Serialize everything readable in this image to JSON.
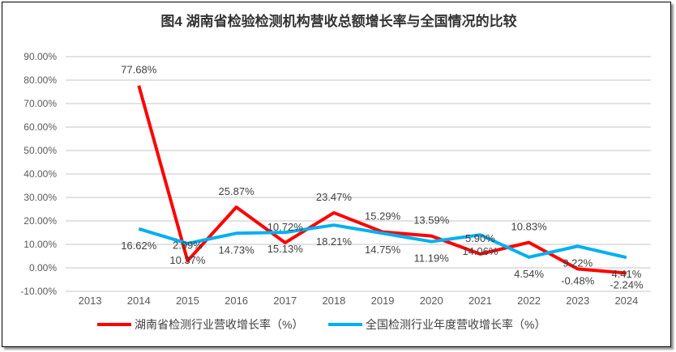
{
  "chart_data": {
    "type": "line",
    "title": "图4  湖南省检验检测机构营收总额增长率与全国情况的比较",
    "categories": [
      "2013",
      "2014",
      "2015",
      "2016",
      "2017",
      "2018",
      "2019",
      "2020",
      "2021",
      "2022",
      "2023",
      "2024"
    ],
    "ylim": [
      -10,
      90
    ],
    "yticks": [
      "-10.00%",
      "0.00%",
      "10.00%",
      "20.00%",
      "30.00%",
      "40.00%",
      "50.00%",
      "60.00%",
      "70.00%",
      "80.00%",
      "90.00%"
    ],
    "grid": true,
    "legend_position": "bottom",
    "series": [
      {
        "name": "湖南省检测行业营收增长率（%）",
        "color": "#ff0000",
        "values": [
          null,
          77.68,
          2.99,
          25.87,
          10.72,
          23.47,
          15.29,
          13.59,
          5.9,
          10.83,
          -0.48,
          -2.24
        ],
        "labels": [
          "",
          "77.68%",
          "2.99%",
          "25.87%",
          "10.72%",
          "23.47%",
          "15.29%",
          "13.59%",
          "5.90%",
          "10.83%",
          "-0.48%",
          "-2.24%"
        ]
      },
      {
        "name": "全国检测行业年度营收增长率（%）",
        "color": "#00b0f0",
        "values": [
          null,
          16.62,
          10.37,
          14.73,
          15.13,
          18.21,
          14.75,
          11.19,
          14.06,
          4.54,
          9.22,
          4.41
        ],
        "labels": [
          "",
          "16.62%",
          "10.37%",
          "14.73%",
          "15.13%",
          "18.21%",
          "14.75%",
          "11.19%",
          "14.06%",
          "4.54%",
          "9.22%",
          "4.41%"
        ]
      }
    ]
  }
}
